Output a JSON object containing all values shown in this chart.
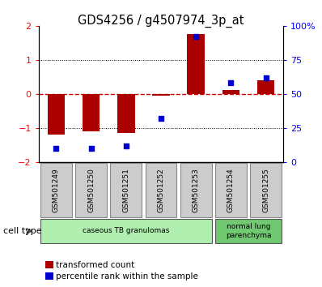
{
  "title": "GDS4256 / g4507974_3p_at",
  "samples": [
    "GSM501249",
    "GSM501250",
    "GSM501251",
    "GSM501252",
    "GSM501253",
    "GSM501254",
    "GSM501255"
  ],
  "transformed_count": [
    -1.2,
    -1.1,
    -1.15,
    -0.05,
    1.75,
    0.12,
    0.4
  ],
  "percentile_rank": [
    10,
    10,
    12,
    32,
    92,
    58,
    62
  ],
  "cell_groups": [
    {
      "label": "caseous TB granulomas",
      "samples": [
        0,
        1,
        2,
        3,
        4
      ],
      "color": "#b0efb0"
    },
    {
      "label": "normal lung\nparenchyma",
      "samples": [
        5,
        6
      ],
      "color": "#70c870"
    }
  ],
  "ylim_left": [
    -2,
    2
  ],
  "ylim_right": [
    0,
    100
  ],
  "yticks_left": [
    -2,
    -1,
    0,
    1,
    2
  ],
  "yticks_right": [
    0,
    25,
    50,
    75,
    100
  ],
  "ytick_labels_right": [
    "0",
    "25",
    "50",
    "75",
    "100%"
  ],
  "bar_color": "#aa0000",
  "scatter_color": "#0000cc",
  "hline_color": "#cc0000",
  "dot_color": "black",
  "legend_red_label": "transformed count",
  "legend_blue_label": "percentile rank within the sample",
  "cell_type_label": "cell type",
  "bar_width": 0.5
}
